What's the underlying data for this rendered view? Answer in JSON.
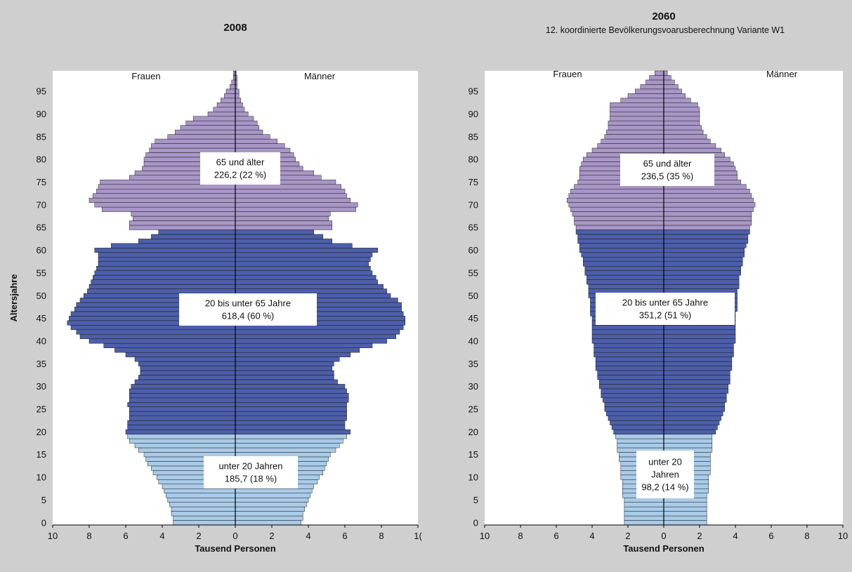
{
  "chart_data": [
    {
      "type": "bar",
      "subtype": "population-pyramid",
      "title": "2008",
      "subtitle": "",
      "ylabel": "Altersjahre",
      "xlabel": "Tausend Personen",
      "side_labels": {
        "left": "Frauen",
        "right": "Männer"
      },
      "x_ticks": [
        "10",
        "8",
        "6",
        "4",
        "2",
        "0",
        "2",
        "4",
        "6",
        "8",
        "1("
      ],
      "y_ticks": [
        "0",
        "5",
        "10",
        "15",
        "20",
        "25",
        "30",
        "35",
        "40",
        "45",
        "50",
        "55",
        "60",
        "65",
        "70",
        "75",
        "80",
        "85",
        "90",
        "95"
      ],
      "xlim": [
        -10,
        10
      ],
      "ylim": [
        0,
        99
      ],
      "groups": [
        {
          "name": "unter 20 Jahren",
          "label_lines": [
            "unter 20 Jahren",
            "185,7 (18 %)"
          ],
          "age_range": [
            0,
            19
          ],
          "color": "#a9cbe8"
        },
        {
          "name": "20 bis unter 65 Jahre",
          "label_lines": [
            "20 bis unter 65 Jahre",
            "618,4 (60  %)"
          ],
          "age_range": [
            20,
            64
          ],
          "color": "#4d5fa8"
        },
        {
          "name": "65 und älter",
          "label_lines": [
            "65 und älter",
            "226,2 (22 %)"
          ],
          "age_range": [
            65,
            99
          ],
          "color": "#a896c6"
        }
      ],
      "frauen": [
        3.4,
        3.4,
        3.5,
        3.5,
        3.6,
        3.7,
        3.8,
        3.9,
        4.0,
        4.2,
        4.3,
        4.5,
        4.6,
        4.8,
        4.9,
        5.0,
        5.3,
        5.5,
        5.8,
        5.9,
        6.0,
        5.9,
        5.9,
        5.8,
        5.8,
        5.8,
        5.9,
        5.8,
        5.8,
        5.8,
        5.7,
        5.5,
        5.3,
        5.2,
        5.2,
        5.3,
        5.5,
        6.0,
        6.6,
        7.2,
        8.0,
        8.5,
        8.7,
        9.0,
        9.2,
        9.1,
        9.0,
        8.8,
        8.7,
        8.5,
        8.3,
        8.1,
        8.0,
        7.9,
        7.8,
        7.7,
        7.6,
        7.5,
        7.5,
        7.5,
        7.7,
        6.8,
        5.3,
        4.6,
        4.2,
        5.8,
        5.8,
        5.6,
        5.7,
        7.3,
        7.7,
        8.0,
        7.8,
        7.6,
        7.5,
        7.4,
        5.8,
        5.5,
        5.1,
        5.0,
        5.0,
        4.9,
        4.7,
        4.6,
        4.4,
        3.7,
        3.3,
        3.0,
        2.7,
        2.3,
        1.5,
        1.2,
        1.0,
        0.8,
        0.6,
        0.5,
        0.3,
        0.2,
        0.1,
        0.1
      ],
      "maenner": [
        3.6,
        3.7,
        3.7,
        3.8,
        3.9,
        4.0,
        4.1,
        4.2,
        4.3,
        4.5,
        4.6,
        4.8,
        4.9,
        5.0,
        5.1,
        5.2,
        5.5,
        5.7,
        5.9,
        6.1,
        6.3,
        6.0,
        6.0,
        6.1,
        6.1,
        6.1,
        6.1,
        6.2,
        6.2,
        6.1,
        6.0,
        5.6,
        5.4,
        5.4,
        5.3,
        5.4,
        5.7,
        6.3,
        6.8,
        7.5,
        8.3,
        8.8,
        9.0,
        9.2,
        9.3,
        9.3,
        9.2,
        9.1,
        9.1,
        8.9,
        8.5,
        8.3,
        8.1,
        7.8,
        7.7,
        7.5,
        7.4,
        7.3,
        7.4,
        7.5,
        7.8,
        6.4,
        5.3,
        4.8,
        4.3,
        5.3,
        5.3,
        5.1,
        5.2,
        6.6,
        6.7,
        6.3,
        6.1,
        6.0,
        5.8,
        5.5,
        4.7,
        4.3,
        3.7,
        3.5,
        3.3,
        3.2,
        3.0,
        2.7,
        2.3,
        1.9,
        1.5,
        1.3,
        1.2,
        1.0,
        0.7,
        0.5,
        0.4,
        0.3,
        0.2,
        0.2,
        0.1,
        0.1,
        0.1,
        0.05
      ]
    },
    {
      "type": "bar",
      "subtype": "population-pyramid",
      "title": "2060",
      "subtitle": "12. koordinierte Bevölkerungsvoarusberechnung Variante W1",
      "ylabel": "",
      "xlabel": "Tausend Personen",
      "side_labels": {
        "left": "Frauen",
        "right": "Männer"
      },
      "x_ticks": [
        "10",
        "8",
        "6",
        "4",
        "2",
        "0",
        "2",
        "4",
        "6",
        "8",
        "10"
      ],
      "y_ticks": [
        "0",
        "5",
        "10",
        "15",
        "20",
        "25",
        "30",
        "35",
        "40",
        "45",
        "50",
        "55",
        "60",
        "65",
        "70",
        "75",
        "80",
        "85",
        "90",
        "95"
      ],
      "xlim": [
        -10,
        10
      ],
      "ylim": [
        0,
        99
      ],
      "groups": [
        {
          "name": "unter 20 Jahren",
          "label_lines": [
            "unter 20",
            "Jahren",
            "98,2 (14 %)"
          ],
          "age_range": [
            0,
            19
          ],
          "color": "#a9cbe8"
        },
        {
          "name": "20 bis unter 65 Jahre",
          "label_lines": [
            "20 bis unter 65 Jahre",
            "351,2  (51 %)"
          ],
          "age_range": [
            20,
            64
          ],
          "color": "#4d5fa8"
        },
        {
          "name": "65 und älter",
          "label_lines": [
            "65 und älter",
            "236,5 (35 %)"
          ],
          "age_range": [
            65,
            99
          ],
          "color": "#a896c6"
        }
      ],
      "frauen": [
        2.2,
        2.2,
        2.2,
        2.2,
        2.2,
        2.2,
        2.3,
        2.3,
        2.3,
        2.3,
        2.4,
        2.4,
        2.4,
        2.4,
        2.5,
        2.5,
        2.6,
        2.6,
        2.6,
        2.7,
        2.8,
        2.9,
        3.0,
        3.1,
        3.2,
        3.3,
        3.3,
        3.4,
        3.5,
        3.5,
        3.6,
        3.6,
        3.7,
        3.7,
        3.8,
        3.8,
        3.8,
        3.9,
        3.9,
        3.9,
        4.0,
        4.0,
        4.0,
        4.0,
        4.0,
        4.0,
        4.1,
        4.1,
        4.1,
        4.1,
        4.2,
        4.2,
        4.2,
        4.3,
        4.3,
        4.4,
        4.4,
        4.5,
        4.5,
        4.6,
        4.7,
        4.7,
        4.8,
        4.8,
        4.9,
        4.9,
        5.0,
        5.0,
        5.1,
        5.2,
        5.3,
        5.4,
        5.3,
        5.2,
        5.0,
        4.8,
        4.7,
        4.7,
        4.7,
        4.6,
        4.5,
        4.3,
        4.0,
        3.7,
        3.5,
        3.3,
        3.2,
        3.1,
        3.1,
        3.0,
        3.0,
        3.0,
        3.0,
        2.4,
        2.0,
        1.6,
        1.3,
        1.0,
        0.8,
        0.5
      ],
      "maenner": [
        2.4,
        2.4,
        2.4,
        2.4,
        2.4,
        2.4,
        2.4,
        2.5,
        2.5,
        2.5,
        2.5,
        2.6,
        2.6,
        2.6,
        2.6,
        2.6,
        2.7,
        2.7,
        2.7,
        2.7,
        2.9,
        3.0,
        3.1,
        3.2,
        3.3,
        3.4,
        3.4,
        3.5,
        3.5,
        3.6,
        3.6,
        3.7,
        3.7,
        3.7,
        3.8,
        3.8,
        3.8,
        3.9,
        3.9,
        3.9,
        4.0,
        4.0,
        4.0,
        4.0,
        4.0,
        4.0,
        4.0,
        4.1,
        4.1,
        4.1,
        4.1,
        4.1,
        4.2,
        4.2,
        4.2,
        4.3,
        4.3,
        4.4,
        4.4,
        4.5,
        4.5,
        4.6,
        4.7,
        4.7,
        4.8,
        4.8,
        4.9,
        4.9,
        4.9,
        5.0,
        5.1,
        5.0,
        4.9,
        4.8,
        4.6,
        4.3,
        4.1,
        4.1,
        4.0,
        3.9,
        3.7,
        3.4,
        3.2,
        2.9,
        2.6,
        2.4,
        2.2,
        2.1,
        2.0,
        2.0,
        2.0,
        2.0,
        1.9,
        1.5,
        1.2,
        1.0,
        0.8,
        0.6,
        0.4,
        0.2
      ]
    }
  ]
}
